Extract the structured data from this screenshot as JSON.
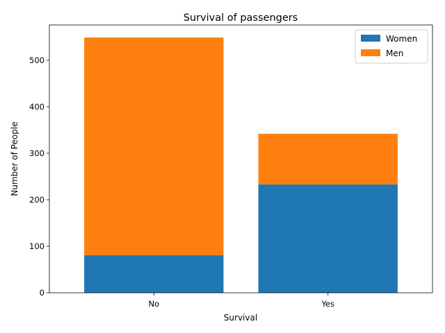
{
  "chart_data": {
    "type": "bar",
    "stacked": true,
    "title": "Survival of passengers",
    "xlabel": "Survival",
    "ylabel": "Number of People",
    "categories": [
      "No",
      "Yes"
    ],
    "series": [
      {
        "name": "Women",
        "values": [
          81,
          233
        ],
        "color": "#1f77b4"
      },
      {
        "name": "Men",
        "values": [
          468,
          109
        ],
        "color": "#ff7f0e"
      }
    ],
    "ylim": [
      0,
      576
    ],
    "yticks": [
      0,
      100,
      200,
      300,
      400,
      500
    ],
    "grid": false,
    "legend_position": "top-right"
  }
}
